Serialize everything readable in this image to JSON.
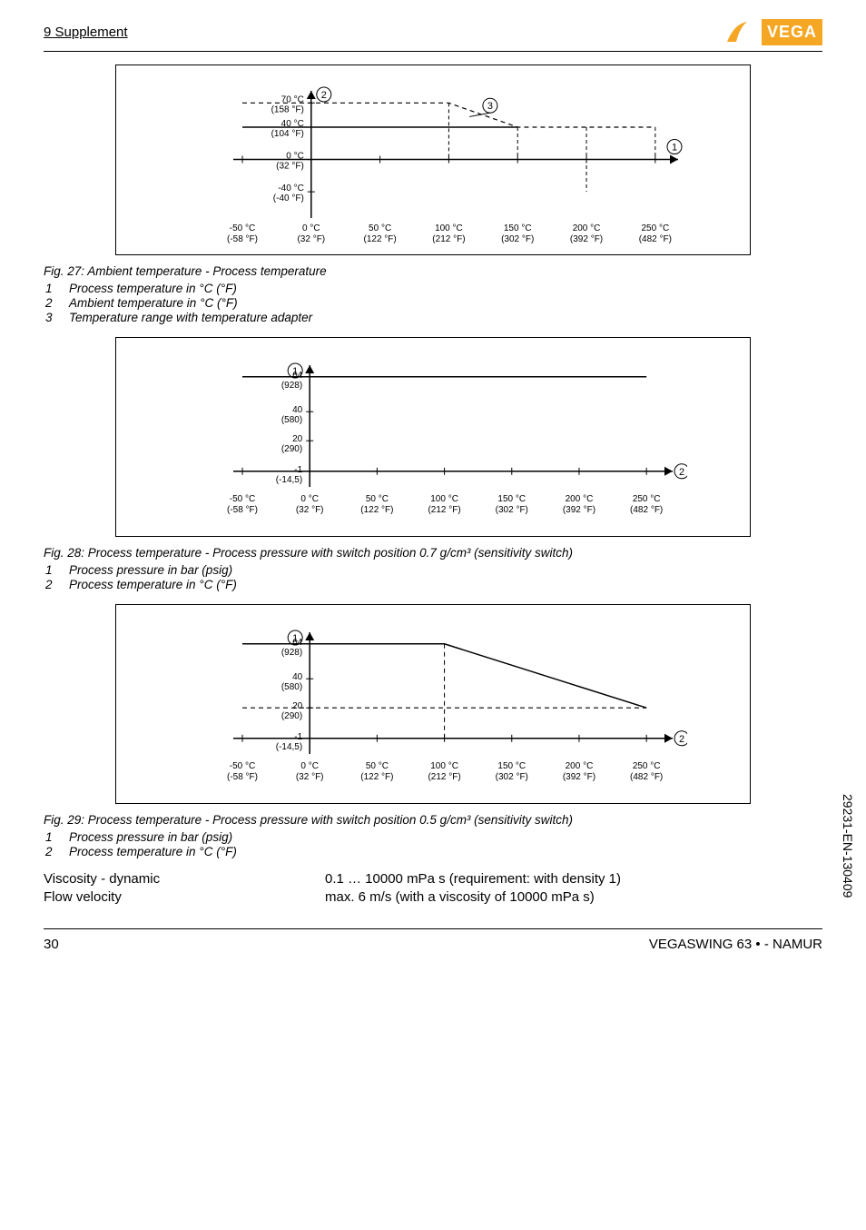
{
  "header": {
    "section": "9 Supplement"
  },
  "logo": {
    "text": "VEGA",
    "bg": "#f5a623",
    "fg": "#ffffff"
  },
  "chart27": {
    "type": "line",
    "xticks": [
      {
        "x": -50,
        "label_c": "-50 °C",
        "label_f": "(-58 °F)"
      },
      {
        "x": 0,
        "label_c": "0 °C",
        "label_f": "(32 °F)"
      },
      {
        "x": 50,
        "label_c": "50 °C",
        "label_f": "(122 °F)"
      },
      {
        "x": 100,
        "label_c": "100 °C",
        "label_f": "(212 °F)"
      },
      {
        "x": 150,
        "label_c": "150 °C",
        "label_f": "(302 °F)"
      },
      {
        "x": 200,
        "label_c": "200 °C",
        "label_f": "(392 °F)"
      },
      {
        "x": 250,
        "label_c": "250 °C",
        "label_f": "(482 °F)"
      }
    ],
    "yticks": [
      {
        "y": -40,
        "label_c": "-40 °C",
        "label_f": "(-40 °F)"
      },
      {
        "y": 0,
        "label_c": "0 °C",
        "label_f": "(32 °F)"
      },
      {
        "y": 40,
        "label_c": "40 °C",
        "label_f": "(104 °F)"
      },
      {
        "y": 70,
        "label_c": "70 °C",
        "label_f": "(158 °F)"
      }
    ],
    "zone3_points": [
      [
        -50,
        70
      ],
      [
        100,
        70
      ],
      [
        150,
        40
      ],
      [
        250,
        40
      ]
    ],
    "solid_points": [
      [
        -50,
        40
      ],
      [
        150,
        40
      ]
    ],
    "markers": {
      "y_axis": "2",
      "x_axis": "1",
      "zone": "3"
    },
    "colors": {
      "stroke": "#000000",
      "dashed": "#000000",
      "bg": "#ffffff"
    }
  },
  "caption27": "Fig. 27: Ambient temperature - Process temperature",
  "legend27": [
    {
      "n": "1",
      "t": "Process temperature in °C (°F)"
    },
    {
      "n": "2",
      "t": "Ambient temperature in °C (°F)"
    },
    {
      "n": "3",
      "t": "Temperature range with temperature adapter"
    }
  ],
  "chart28": {
    "type": "line",
    "xticks": [
      {
        "x": -50,
        "label_c": "-50 °C",
        "label_f": "(-58 °F)"
      },
      {
        "x": 0,
        "label_c": "0 °C",
        "label_f": "(32 °F)"
      },
      {
        "x": 50,
        "label_c": "50 °C",
        "label_f": "(122 °F)"
      },
      {
        "x": 100,
        "label_c": "100 °C",
        "label_f": "(212 °F)"
      },
      {
        "x": 150,
        "label_c": "150 °C",
        "label_f": "(302 °F)"
      },
      {
        "x": 200,
        "label_c": "200 °C",
        "label_f": "(392 °F)"
      },
      {
        "x": 250,
        "label_c": "250 °C",
        "label_f": "(482 °F)"
      }
    ],
    "yticks": [
      {
        "y": -1,
        "label_c": "-1",
        "label_f": "(-14,5)"
      },
      {
        "y": 20,
        "label_c": "20",
        "label_f": "(290)"
      },
      {
        "y": 40,
        "label_c": "40",
        "label_f": "(580)"
      },
      {
        "y": 64,
        "label_c": "64",
        "label_f": "(928)"
      }
    ],
    "solid_points": [
      [
        -50,
        64
      ],
      [
        250,
        64
      ]
    ],
    "markers": {
      "y_axis": "1",
      "x_axis": "2"
    }
  },
  "caption28": "Fig. 28: Process temperature - Process pressure with switch position 0.7 g/cm³ (sensitivity switch)",
  "legend28": [
    {
      "n": "1",
      "t": "Process pressure in bar (psig)"
    },
    {
      "n": "2",
      "t": "Process temperature in °C (°F)"
    }
  ],
  "chart29": {
    "type": "line",
    "xticks": [
      {
        "x": -50,
        "label_c": "-50 °C",
        "label_f": "(-58 °F)"
      },
      {
        "x": 0,
        "label_c": "0 °C",
        "label_f": "(32 °F)"
      },
      {
        "x": 50,
        "label_c": "50 °C",
        "label_f": "(122 °F)"
      },
      {
        "x": 100,
        "label_c": "100 °C",
        "label_f": "(212 °F)"
      },
      {
        "x": 150,
        "label_c": "150 °C",
        "label_f": "(302 °F)"
      },
      {
        "x": 200,
        "label_c": "200 °C",
        "label_f": "(392 °F)"
      },
      {
        "x": 250,
        "label_c": "250 °C",
        "label_f": "(482 °F)"
      }
    ],
    "yticks": [
      {
        "y": -1,
        "label_c": "-1",
        "label_f": "(-14,5)"
      },
      {
        "y": 20,
        "label_c": "20",
        "label_f": "(290)"
      },
      {
        "y": 40,
        "label_c": "40",
        "label_f": "(580)"
      },
      {
        "y": 64,
        "label_c": "64",
        "label_f": "(928)"
      }
    ],
    "solid_points": [
      [
        -50,
        64
      ],
      [
        100,
        64
      ],
      [
        250,
        20
      ]
    ],
    "dashed_points": [
      [
        -50,
        20
      ],
      [
        250,
        20
      ]
    ],
    "dashed_v": [
      100,
      -1,
      64
    ],
    "markers": {
      "y_axis": "1",
      "x_axis": "2"
    }
  },
  "caption29": "Fig. 29: Process temperature - Process pressure with switch position 0.5 g/cm³ (sensitivity switch)",
  "legend29": [
    {
      "n": "1",
      "t": "Process pressure in bar (psig)"
    },
    {
      "n": "2",
      "t": "Process temperature in °C (°F)"
    }
  ],
  "specs": [
    {
      "label": "Viscosity - dynamic",
      "value": "0.1 … 10000 mPa s (requirement: with density 1)"
    },
    {
      "label": "Flow velocity",
      "value": "max. 6 m/s (with a viscosity of 10000 mPa s)"
    }
  ],
  "footer": {
    "page": "30",
    "product": "VEGASWING 63 • - NAMUR"
  },
  "docnum": "29231-EN-130409"
}
